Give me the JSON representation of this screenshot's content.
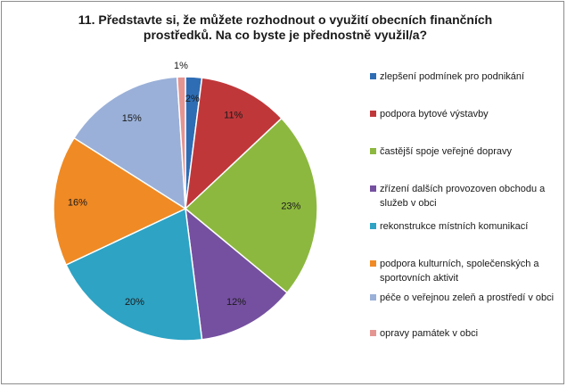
{
  "chart_data": {
    "type": "pie",
    "title": "11. Představte si,  že můžete rozhodnout o využití obecních finančních prostředků.  Na co byste  je přednostně využil/a?",
    "categories": [
      "zlepšení podmínek pro podnikání",
      "podpora bytové výstavby",
      "častější spoje veřejné dopravy",
      "zřízení dalších provozoven obchodu a služeb v obci",
      "rekonstrukce místních komunikací",
      "podpora kulturních, společenských a sportovních aktivit",
      "péče o veřejnou zeleň a prostředí v obci",
      "opravy památek v obci"
    ],
    "values": [
      2,
      11,
      23,
      12,
      20,
      16,
      15,
      1
    ],
    "value_labels": [
      "2%",
      "11%",
      "23%",
      "12%",
      "20%",
      "16%",
      "15%",
      "1%"
    ],
    "colors": [
      "#2e6db4",
      "#c0373a",
      "#8cb83f",
      "#7550a0",
      "#2ea3c4",
      "#f08a24",
      "#9ab0d8",
      "#e49592"
    ],
    "legend_position": "right"
  }
}
